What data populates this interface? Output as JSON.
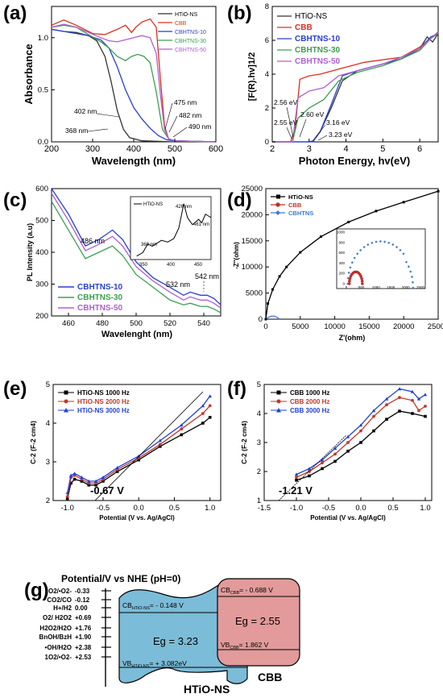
{
  "panels": {
    "a": "(a)",
    "b": "(b)",
    "c": "(c)",
    "d": "(d)",
    "e": "(e)",
    "f": "(f)",
    "g": "(g)"
  },
  "chart_data": [
    {
      "id": "a",
      "type": "line",
      "xlabel": "Wavelength (nm)",
      "ylabel": "Absorbance",
      "xlim": [
        200,
        600
      ],
      "ylim": [
        0,
        1.3
      ],
      "xticks": [
        "200",
        "300",
        "400",
        "500",
        "600"
      ],
      "yticks": [
        "0.0",
        "0.5",
        "1.0"
      ],
      "series": [
        {
          "name": "HTiO-NS",
          "color": "#333333",
          "x": [
            200,
            230,
            260,
            290,
            310,
            330,
            345,
            360,
            375,
            390,
            420,
            500,
            600
          ],
          "y": [
            1.08,
            1.06,
            1.05,
            1.02,
            0.97,
            0.82,
            0.58,
            0.3,
            0.12,
            0.04,
            0.01,
            0.0,
            0.0
          ]
        },
        {
          "name": "CBB",
          "color": "#d9301c",
          "x": [
            200,
            230,
            260,
            300,
            330,
            360,
            380,
            395,
            405,
            420,
            440,
            455,
            465,
            475,
            485,
            500,
            600
          ],
          "y": [
            1.12,
            1.17,
            1.12,
            1.04,
            1.03,
            1.08,
            1.12,
            1.05,
            1.1,
            1.15,
            1.18,
            1.1,
            0.6,
            0.15,
            0.03,
            0.01,
            0.0
          ]
        },
        {
          "name": "CBHTNS-10",
          "color": "#2a3fd0",
          "x": [
            200,
            230,
            260,
            290,
            320,
            340,
            360,
            380,
            400,
            420,
            440,
            460,
            480,
            500,
            600
          ],
          "y": [
            1.08,
            1.06,
            1.04,
            1.02,
            0.98,
            0.9,
            0.72,
            0.5,
            0.33,
            0.22,
            0.13,
            0.06,
            0.02,
            0.01,
            0.0
          ]
        },
        {
          "name": "CBHTNS-30",
          "color": "#3aa050",
          "x": [
            200,
            230,
            260,
            290,
            320,
            340,
            360,
            380,
            395,
            410,
            425,
            440,
            455,
            470,
            485,
            500,
            600
          ],
          "y": [
            1.1,
            1.12,
            1.1,
            1.03,
            0.96,
            0.9,
            0.82,
            0.78,
            0.82,
            0.84,
            0.82,
            0.76,
            0.48,
            0.12,
            0.03,
            0.01,
            0.0
          ]
        },
        {
          "name": "CBHTNS-50",
          "color": "#b060d0",
          "x": [
            200,
            230,
            260,
            290,
            320,
            340,
            360,
            380,
            400,
            420,
            440,
            455,
            465,
            475,
            485,
            500,
            600
          ],
          "y": [
            1.1,
            1.13,
            1.1,
            1.05,
            1.0,
            0.97,
            0.96,
            0.98,
            1.0,
            1.02,
            1.0,
            0.85,
            0.45,
            0.12,
            0.03,
            0.01,
            0.0
          ]
        }
      ],
      "annotations": [
        "475 nm",
        "482 nm",
        "490 nm",
        "402 nm",
        "368 nm"
      ]
    },
    {
      "id": "b",
      "type": "line",
      "xlabel": "Photon Energy, hv(eV)",
      "ylabel": "[F(R).hv]1/2",
      "xlim": [
        2,
        6.5
      ],
      "ylim": [
        0,
        8
      ],
      "xticks": [
        "2",
        "3",
        "4",
        "5",
        "6"
      ],
      "yticks": [
        "0",
        "2",
        "4",
        "6",
        "8"
      ],
      "series": [
        {
          "name": "HTiO-NS",
          "color": "#333333",
          "x": [
            2,
            3.0,
            3.1,
            3.3,
            3.6,
            3.9,
            4.3,
            5,
            5.5,
            6,
            6.2,
            6.35,
            6.5
          ],
          "y": [
            0,
            0,
            0.05,
            0.6,
            2.0,
            3.6,
            4.2,
            4.6,
            4.9,
            5.5,
            6.2,
            5.9,
            6.4
          ]
        },
        {
          "name": "CBB",
          "color": "#d9301c",
          "x": [
            2,
            2.5,
            2.62,
            2.75,
            3.0,
            3.3,
            3.8,
            4.5,
            5.5,
            6,
            6.3,
            6.5
          ],
          "y": [
            0,
            0,
            0.8,
            3.7,
            3.9,
            4.0,
            4.3,
            4.7,
            5.0,
            5.6,
            6.1,
            6.5
          ]
        },
        {
          "name": "CBHTNS-10",
          "color": "#2a3fd0",
          "x": [
            2,
            3.1,
            3.3,
            3.6,
            3.9,
            4.3,
            5,
            5.5,
            6,
            6.3,
            6.5
          ],
          "y": [
            0,
            0,
            0.6,
            2.2,
            3.9,
            4.2,
            4.6,
            4.9,
            5.5,
            6.2,
            6.4
          ]
        },
        {
          "name": "CBHTNS-30",
          "color": "#3aa050",
          "x": [
            2,
            2.55,
            2.7,
            3.0,
            3.4,
            3.8,
            4.3,
            5,
            5.5,
            6,
            6.3,
            6.5
          ],
          "y": [
            0,
            0,
            1.4,
            2.0,
            2.5,
            3.6,
            4.1,
            4.5,
            4.9,
            5.4,
            6.1,
            6.4
          ]
        },
        {
          "name": "CBHTNS-50",
          "color": "#b060d0",
          "x": [
            2,
            2.55,
            2.7,
            3.0,
            3.4,
            3.8,
            4.3,
            5,
            5.5,
            6,
            6.3,
            6.5
          ],
          "y": [
            0,
            0,
            2.6,
            3.0,
            3.2,
            3.9,
            4.2,
            4.6,
            5.0,
            5.5,
            6.1,
            6.5
          ]
        }
      ],
      "annotations": [
        "2.56 eV",
        "2.55 eV",
        "2.60 eV",
        "3.16 eV",
        "3.23 eV"
      ]
    },
    {
      "id": "c",
      "type": "line",
      "xlabel": "Wavelenght (nm)",
      "ylabel": "PL Intensity (a.u)",
      "xlim": [
        450,
        550
      ],
      "ylim": [
        200,
        600
      ],
      "xticks": [
        "460",
        "480",
        "500",
        "520",
        "540"
      ],
      "yticks": [
        "200",
        "300",
        "400",
        "500",
        "600"
      ],
      "series": [
        {
          "name": "CBHTNS-10",
          "color": "#2a3fd0",
          "x": [
            450,
            460,
            470,
            478,
            486,
            492,
            500,
            510,
            520,
            528,
            532,
            538,
            542,
            546,
            550
          ],
          "y": [
            600,
            520,
            420,
            440,
            470,
            440,
            370,
            320,
            290,
            265,
            275,
            265,
            265,
            255,
            235
          ]
        },
        {
          "name": "CBHTNS-30",
          "color": "#3aa050",
          "x": [
            450,
            460,
            470,
            478,
            486,
            492,
            500,
            510,
            520,
            528,
            532,
            538,
            542,
            546,
            550
          ],
          "y": [
            560,
            470,
            380,
            400,
            420,
            390,
            330,
            290,
            250,
            235,
            240,
            230,
            230,
            222,
            210
          ]
        },
        {
          "name": "CBHTNS-50",
          "color": "#b060d0",
          "x": [
            450,
            460,
            470,
            478,
            486,
            492,
            500,
            510,
            520,
            528,
            532,
            538,
            542,
            546,
            550
          ],
          "y": [
            585,
            500,
            405,
            425,
            450,
            420,
            355,
            310,
            275,
            250,
            260,
            250,
            250,
            240,
            225
          ]
        }
      ],
      "annotations": [
        "486 nm",
        "532 nm",
        "542 nm"
      ],
      "inset": {
        "legend": "HTiO-NS",
        "xticks": [
          "350",
          "400",
          "450"
        ],
        "labels": [
          "368 nm",
          "426 nm",
          "461 nm"
        ]
      }
    },
    {
      "id": "d",
      "type": "line",
      "xlabel": "Z'(ohm)",
      "ylabel": "-Z''(ohm)",
      "xlim": [
        0,
        25000
      ],
      "ylim": [
        0,
        25000
      ],
      "xticks": [
        "0",
        "5000",
        "10000",
        "15000",
        "20000",
        "25000"
      ],
      "yticks": [
        "0",
        "5000",
        "10000",
        "15000",
        "20000",
        "25000"
      ],
      "series": [
        {
          "name": "HTiO-NS",
          "color": "#000000",
          "x": [
            0,
            300,
            1000,
            2000,
            3000,
            5000,
            8000,
            12000,
            16000,
            20000,
            25000
          ],
          "y": [
            0,
            3000,
            5700,
            8200,
            10000,
            12800,
            15800,
            18600,
            20700,
            22400,
            24500
          ]
        },
        {
          "name": "CBB",
          "color": "#c0302a",
          "x": [],
          "y": []
        },
        {
          "name": "CBHTNS",
          "color": "#3d79d6",
          "x": [
            0,
            300,
            700,
            1200,
            1600,
            2000
          ],
          "y": [
            0,
            300,
            550,
            600,
            400,
            0
          ]
        }
      ],
      "inset": {
        "xticks": [
          "0",
          "500",
          "1000",
          "1500",
          "2000",
          "2500"
        ],
        "yticks": [
          "0",
          "200",
          "400",
          "600",
          "800",
          "1000"
        ]
      }
    },
    {
      "id": "e",
      "type": "line",
      "xlabel": "Potential (V vs. Ag/AgCl)",
      "ylabel": "C-2 (F-2 cm4)",
      "xlim": [
        -1.2,
        1.15
      ],
      "ylim": [
        2,
        5
      ],
      "xticks": [
        "-1.0",
        "-0.5",
        "0.0",
        "0.5",
        "1.0"
      ],
      "yticks": [
        "2",
        "3",
        "4",
        "5"
      ],
      "series": [
        {
          "name": "HTiO-NS 1000 Hz",
          "color": "#000000",
          "x": [
            -1,
            -0.95,
            -0.9,
            -0.8,
            -0.7,
            -0.6,
            -0.5,
            -0.3,
            0,
            0.3,
            0.6,
            0.9,
            1.0
          ],
          "y": [
            2.05,
            2.45,
            2.55,
            2.5,
            2.4,
            2.4,
            2.5,
            2.75,
            3.05,
            3.4,
            3.7,
            4.0,
            4.15
          ]
        },
        {
          "name": "HTiO-NS 2000 Hz",
          "color": "#c0392b",
          "x": [
            -1,
            -0.95,
            -0.9,
            -0.8,
            -0.7,
            -0.6,
            -0.5,
            -0.3,
            0,
            0.3,
            0.6,
            0.9,
            1.0
          ],
          "y": [
            2.1,
            2.6,
            2.65,
            2.55,
            2.45,
            2.45,
            2.55,
            2.8,
            3.1,
            3.45,
            3.85,
            4.25,
            4.45
          ]
        },
        {
          "name": "HTiO-NS 3000 Hz",
          "color": "#1f3fd9",
          "x": [
            -1,
            -0.95,
            -0.9,
            -0.8,
            -0.7,
            -0.6,
            -0.5,
            -0.3,
            0,
            0.3,
            0.6,
            0.9,
            1.0
          ],
          "y": [
            2.2,
            2.65,
            2.7,
            2.6,
            2.5,
            2.5,
            2.6,
            2.85,
            3.15,
            3.55,
            3.95,
            4.45,
            4.7
          ]
        }
      ],
      "annotations": [
        "-0.67 V"
      ]
    },
    {
      "id": "f",
      "type": "line",
      "xlabel": "Potential (V vs. Ag/AgCl)",
      "ylabel": "C-2 (F-2 cm4)",
      "xlim": [
        -1.5,
        1.1
      ],
      "ylim": [
        1,
        5
      ],
      "xticks": [
        "-1.5",
        "-1.0",
        "-0.5",
        "0.0",
        "0.5",
        "1.0"
      ],
      "yticks": [
        "1",
        "2",
        "3",
        "4",
        "5"
      ],
      "series": [
        {
          "name": "CBB 1000 Hz",
          "color": "#000000",
          "x": [
            -1,
            -0.8,
            -0.6,
            -0.4,
            -0.2,
            0,
            0.2,
            0.4,
            0.6,
            0.8,
            1.0
          ],
          "y": [
            1.7,
            1.85,
            2.1,
            2.35,
            2.7,
            3.0,
            3.4,
            3.8,
            4.08,
            4.0,
            3.9
          ]
        },
        {
          "name": "CBB 2000 Hz",
          "color": "#c0392b",
          "x": [
            -1,
            -0.8,
            -0.6,
            -0.4,
            -0.2,
            0,
            0.2,
            0.4,
            0.6,
            0.8,
            0.9,
            1.0
          ],
          "y": [
            1.8,
            2.0,
            2.3,
            2.6,
            3.0,
            3.4,
            3.9,
            4.3,
            4.55,
            4.45,
            4.1,
            4.25
          ]
        },
        {
          "name": "CBB 3000 Hz",
          "color": "#1f3fd9",
          "x": [
            -1,
            -0.8,
            -0.6,
            -0.4,
            -0.2,
            0,
            0.2,
            0.4,
            0.6,
            0.8,
            0.9,
            1.0
          ],
          "y": [
            1.9,
            2.1,
            2.4,
            2.8,
            3.2,
            3.6,
            4.1,
            4.5,
            4.85,
            4.75,
            4.5,
            4.65
          ]
        }
      ],
      "annotations": [
        "-1.21 V"
      ]
    }
  ],
  "diagram_g": {
    "title": "Potential/V vs NHE (pH=0)",
    "scale": [
      {
        "species": "O2/•O2-",
        "value": "-0.33"
      },
      {
        "species": "CO2/CO",
        "value": "-0.12"
      },
      {
        "species": "H+/H2",
        "value": "0.00"
      },
      {
        "species": "O2/ H2O2",
        "value": "+0.69"
      },
      {
        "species": "H2O2/H2O",
        "value": "+1.76"
      },
      {
        "species": "BnOH/BzH",
        "value": "+1.90"
      },
      {
        "species": "•OH/H2O",
        "value": "+2.38"
      },
      {
        "species": "1O2/•O2-",
        "value": "+2.53"
      }
    ],
    "htio": {
      "cb_label": "CB",
      "cb_sub": "HTiO-NS",
      "cb_value": "= - 0.148 V",
      "eg": "Eg = 3.23",
      "vb_label": "VB",
      "vb_sub": "HTiO-NS",
      "vb_value": "= + 3.082eV",
      "name": "HTiO-NS"
    },
    "cbb": {
      "cb_label": "CB",
      "cb_sub": "CBB",
      "cb_value": "= - 0.688 V",
      "eg": "Eg = 2.55",
      "vb_label": "VB",
      "vb_sub": "CBB",
      "vb_value": "= 1.862 V",
      "name": "CBB"
    }
  }
}
